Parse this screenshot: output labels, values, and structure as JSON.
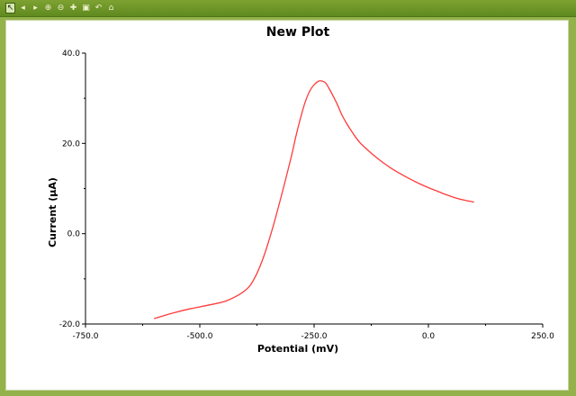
{
  "toolbar": {
    "tools": [
      {
        "icon": "pointer-select-icon"
      },
      {
        "icon": "arrow-left-icon"
      },
      {
        "icon": "arrow-right-icon"
      },
      {
        "icon": "zoom-in-icon"
      },
      {
        "icon": "zoom-out-icon"
      },
      {
        "icon": "pan-icon"
      },
      {
        "icon": "zoom-box-icon"
      },
      {
        "icon": "undo-icon"
      },
      {
        "icon": "home-icon"
      }
    ]
  },
  "colors": {
    "frame": "#94b24a",
    "toolbar": "#6a9427",
    "series": "#ff3b3b",
    "axis": "#000000"
  },
  "chart_data": {
    "type": "line",
    "title": "New Plot",
    "xlabel": "Potential (mV)",
    "ylabel": "Current (µA)",
    "xlim": [
      -750,
      250
    ],
    "ylim": [
      -20,
      40
    ],
    "xticks": [
      -750,
      -500,
      -250,
      0,
      250
    ],
    "xtick_labels": [
      "-750.0",
      "-500.0",
      "-250.0",
      "0.0",
      "250.0"
    ],
    "yticks": [
      -20,
      0,
      20,
      40
    ],
    "ytick_labels": [
      "-20.0",
      "0.0",
      "20.0",
      "40.0"
    ],
    "grid": false,
    "series": [
      {
        "x": [
          -600,
          -560,
          -520,
          -480,
          -440,
          -400,
          -380,
          -360,
          -340,
          -320,
          -300,
          -290,
          -280,
          -270,
          -260,
          -250,
          -240,
          -232,
          -225,
          -218,
          -210,
          -200,
          -190,
          -180,
          -170,
          -160,
          -150,
          -140,
          -120,
          -100,
          -80,
          -60,
          -40,
          -20,
          0,
          20,
          40,
          60,
          80,
          100
        ],
        "y": [
          -18.8,
          -17.6,
          -16.6,
          -15.8,
          -14.8,
          -12.5,
          -9.8,
          -5,
          1.5,
          9,
          17,
          21.5,
          25.5,
          29,
          31.5,
          33,
          33.8,
          33.8,
          33.4,
          32.3,
          30.8,
          28.8,
          26.5,
          24.6,
          23,
          21.5,
          20.2,
          19.2,
          17.4,
          15.8,
          14.4,
          13.2,
          12.1,
          11.1,
          10.2,
          9.4,
          8.6,
          7.9,
          7.4,
          7
        ]
      }
    ]
  }
}
